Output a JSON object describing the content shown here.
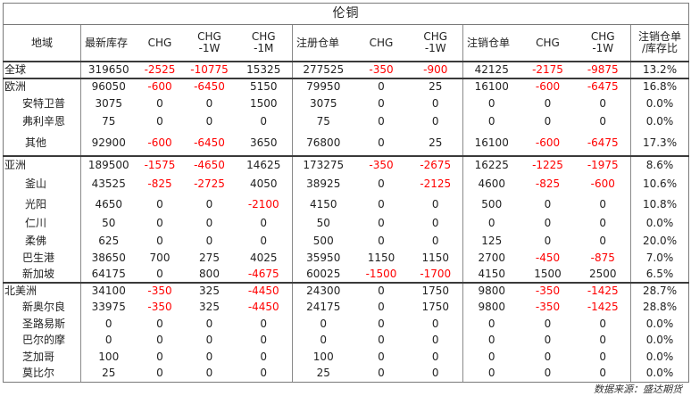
{
  "title": "伦铜",
  "headers": [
    "地域",
    "最新库存",
    "CHG",
    "CHG\n-1W",
    "CHG\n-1M",
    "注册仓单",
    "CHG",
    "CHG\n-1W",
    "注销仓单",
    "CHG",
    "CHG\n-1W",
    "注销仓单\n/库存比"
  ],
  "rows": [
    {
      "name": "全球",
      "level": "region",
      "sep": true,
      "h": 19,
      "cells": [
        "319650",
        "-2525",
        "-10775",
        "15325",
        "277525",
        "-350",
        "-900",
        "42125",
        "-2175",
        "-9875",
        "13.2%"
      ]
    },
    {
      "name": "欧洲",
      "level": "region",
      "sep": true,
      "h": 18,
      "cells": [
        "96050",
        "-600",
        "-6450",
        "5150",
        "79950",
        "0",
        "25",
        "16100",
        "-600",
        "-6475",
        "16.8%"
      ]
    },
    {
      "name": "安特卫普",
      "level": "sub",
      "sep": false,
      "h": 20,
      "cells": [
        "3075",
        "0",
        "0",
        "1500",
        "3075",
        "0",
        "0",
        "0",
        "0",
        "0",
        "0.0%"
      ]
    },
    {
      "name": "弗利辛恩",
      "level": "sub",
      "sep": false,
      "h": 21,
      "cells": [
        "75",
        "0",
        "0",
        "0",
        "75",
        "0",
        "0",
        "0",
        "0",
        "0",
        "0.0%"
      ]
    },
    {
      "name": "其他",
      "level": "sub2",
      "sep": false,
      "h": 28,
      "cells": [
        "92900",
        "-600",
        "-6450",
        "3650",
        "76800",
        "0",
        "25",
        "16100",
        "-600",
        "-6475",
        "17.3%"
      ]
    },
    {
      "name": "亚洲",
      "level": "region",
      "sep": true,
      "h": 20,
      "cells": [
        "189500",
        "-1575",
        "-4650",
        "14625",
        "173275",
        "-350",
        "-2675",
        "16225",
        "-1225",
        "-1975",
        "8.6%"
      ]
    },
    {
      "name": "釜山",
      "level": "sub2",
      "sep": false,
      "h": 23,
      "cells": [
        "43525",
        "-825",
        "-2725",
        "4050",
        "38925",
        "0",
        "-2125",
        "4600",
        "-825",
        "-600",
        "10.6%"
      ]
    },
    {
      "name": "光阳",
      "level": "sub2",
      "sep": false,
      "h": 22,
      "cells": [
        "4650",
        "0",
        "0",
        "-2100",
        "4150",
        "0",
        "0",
        "500",
        "0",
        "0",
        "10.8%"
      ]
    },
    {
      "name": "仁川",
      "level": "sub2",
      "sep": false,
      "h": 20,
      "cells": [
        "50",
        "0",
        "0",
        "0",
        "50",
        "0",
        "0",
        "0",
        "0",
        "0",
        "0.0%"
      ]
    },
    {
      "name": "柔佛",
      "level": "sub2",
      "sep": false,
      "h": 20,
      "cells": [
        "625",
        "0",
        "0",
        "0",
        "500",
        "0",
        "0",
        "125",
        "0",
        "0",
        "20.0%"
      ]
    },
    {
      "name": "巴生港",
      "level": "sub",
      "sep": false,
      "h": 19,
      "cells": [
        "38650",
        "700",
        "275",
        "4025",
        "35950",
        "1150",
        "1150",
        "2700",
        "-450",
        "-875",
        "7.0%"
      ]
    },
    {
      "name": "新加坡",
      "level": "sub",
      "sep": false,
      "h": 18,
      "cells": [
        "64175",
        "0",
        "800",
        "-4675",
        "60025",
        "-1500",
        "-1700",
        "4150",
        "1500",
        "2500",
        "6.5%"
      ]
    },
    {
      "name": "北美洲",
      "level": "region",
      "sep": true,
      "h": 18,
      "cells": [
        "34100",
        "-350",
        "325",
        "-4450",
        "24300",
        "0",
        "1750",
        "9800",
        "-350",
        "-1425",
        "28.7%"
      ]
    },
    {
      "name": "新奥尔良",
      "level": "sub",
      "sep": false,
      "h": 19,
      "cells": [
        "33975",
        "-350",
        "325",
        "-4450",
        "24175",
        "0",
        "1750",
        "9800",
        "-350",
        "-1425",
        "28.8%"
      ]
    },
    {
      "name": "圣路易斯",
      "level": "sub",
      "sep": false,
      "h": 18,
      "cells": [
        "0",
        "0",
        "0",
        "0",
        "0",
        "0",
        "0",
        "0",
        "0",
        "0",
        "0.0%"
      ]
    },
    {
      "name": "巴尔的摩",
      "level": "sub",
      "sep": false,
      "h": 19,
      "cells": [
        "0",
        "0",
        "0",
        "0",
        "0",
        "0",
        "0",
        "0",
        "0",
        "0",
        "0.0%"
      ]
    },
    {
      "name": "芝加哥",
      "level": "sub",
      "sep": false,
      "h": 18,
      "cells": [
        "100",
        "0",
        "0",
        "0",
        "100",
        "0",
        "0",
        "0",
        "0",
        "0",
        "0.0%"
      ]
    },
    {
      "name": "莫比尔",
      "level": "sub",
      "sep": false,
      "h": 19,
      "cells": [
        "25",
        "0",
        "0",
        "0",
        "25",
        "0",
        "0",
        "0",
        "0",
        "0",
        "0.0%"
      ]
    }
  ],
  "footer": "数据来源：盛达期货"
}
